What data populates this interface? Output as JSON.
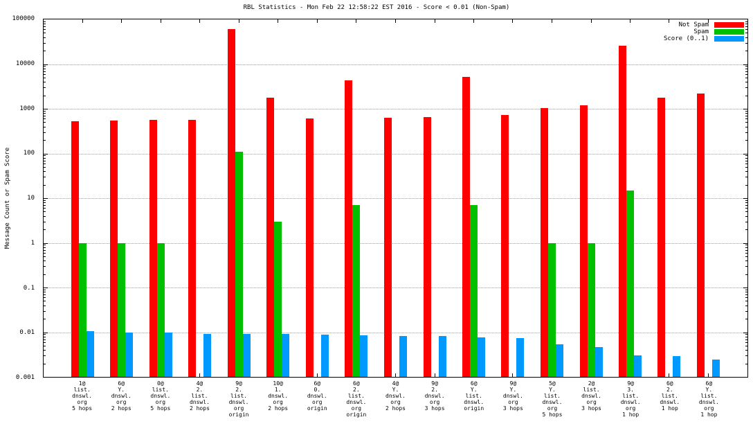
{
  "title": "RBL Statistics - Mon Feb 22 12:58:22 EST 2016 - Score < 0.01 (Non-Spam)",
  "ylabel": "Message Count or Spam Score",
  "legend": {
    "position": "top-right",
    "items": [
      {
        "label": "Not Spam",
        "color": "#ff0000"
      },
      {
        "label": "Spam",
        "color": "#00c000"
      },
      {
        "label": "Score (0..1)",
        "color": "#0099ff"
      }
    ]
  },
  "chart_data": {
    "type": "bar",
    "scale": "log",
    "grid": "horizontal-dotted",
    "ylim": [
      0.001,
      100000
    ],
    "ytick_labels": [
      "100000",
      "10000",
      "1000",
      "100",
      "10",
      "1",
      "0.1",
      "0.01",
      "0.001"
    ],
    "categories": [
      [
        "1@",
        "list.",
        "dnswl.",
        "org",
        "5 hops"
      ],
      [
        "6@",
        "Y.",
        "dnswl.",
        "org",
        "2 hops"
      ],
      [
        "0@",
        "list.",
        "dnswl.",
        "org",
        "5 hops"
      ],
      [
        "4@",
        "2.",
        "list.",
        "dnswl.",
        "2 hops"
      ],
      [
        "9@",
        "2.",
        "list.",
        "dnswl.",
        "org",
        "origin"
      ],
      [
        "10@",
        "1.",
        "dnswl.",
        "org",
        "2 hops"
      ],
      [
        "6@",
        "0.",
        "dnswl.",
        "org",
        "origin"
      ],
      [
        "6@",
        "2.",
        "list.",
        "dnswl.",
        "org",
        "origin"
      ],
      [
        "4@",
        "Y.",
        "dnswl.",
        "org",
        "2 hops"
      ],
      [
        "9@",
        "2.",
        "dnswl.",
        "org",
        "3 hops"
      ],
      [
        "6@",
        "Y.",
        "list.",
        "dnswl.",
        "origin"
      ],
      [
        "9@",
        "Y.",
        "dnswl.",
        "org",
        "3 hops"
      ],
      [
        "5@",
        "Y.",
        "list.",
        "dnswl.",
        "org",
        "5 hops"
      ],
      [
        "2@",
        "list.",
        "dnswl.",
        "org",
        "3 hops"
      ],
      [
        "9@",
        "3.",
        "list.",
        "dnswl.",
        "org",
        "1 hop"
      ],
      [
        "6@",
        "2.",
        "list.",
        "dnswl.",
        "1 hop"
      ],
      [
        "6@",
        "Y.",
        "list.",
        "dnswl.",
        "org",
        "1 hop"
      ]
    ],
    "series": [
      {
        "name": "Not Spam",
        "key": "not-spam",
        "color": "#ff0000",
        "values": [
          520,
          550,
          560,
          575,
          60000,
          1750,
          610,
          4300,
          640,
          660,
          5200,
          730,
          1050,
          1200,
          26000,
          1800,
          2200
        ]
      },
      {
        "name": "Spam",
        "key": "spam",
        "color": "#00c000",
        "values": [
          1,
          1,
          1,
          0,
          110,
          3,
          0,
          7,
          0,
          0,
          7,
          0,
          1,
          1,
          15,
          0,
          0
        ]
      },
      {
        "name": "Score (0..1)",
        "key": "score",
        "color": "#0099ff",
        "values": [
          0.0105,
          0.01,
          0.0098,
          0.0093,
          0.0092,
          0.0092,
          0.0087,
          0.0086,
          0.0083,
          0.0082,
          0.0076,
          0.0073,
          0.0053,
          0.0046,
          0.003,
          0.0029,
          0.0024
        ]
      }
    ]
  }
}
